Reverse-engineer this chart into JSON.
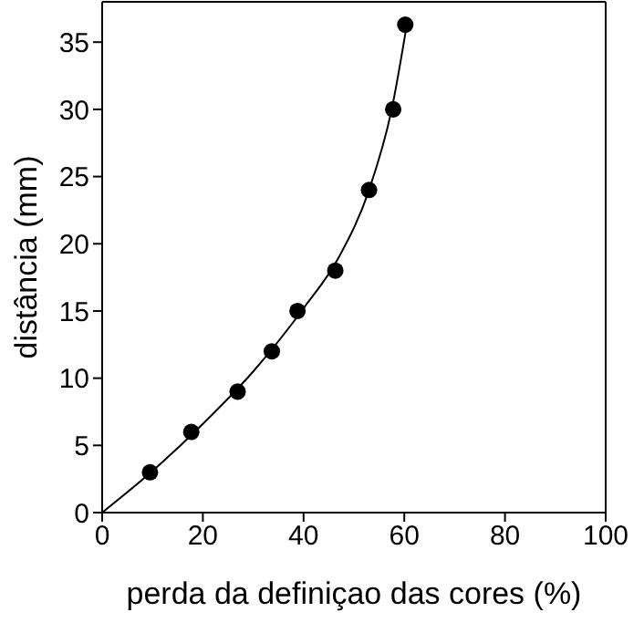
{
  "chart_data": {
    "type": "scatter",
    "xlabel": "perda da definiçao das cores (%)",
    "ylabel": "distância (mm)",
    "xlim": [
      0,
      100
    ],
    "xticks": [
      0,
      20,
      40,
      60,
      80,
      100
    ],
    "ylim": [
      0,
      38
    ],
    "yticks": [
      0,
      5,
      10,
      15,
      20,
      25,
      30,
      35
    ],
    "grid": false,
    "marker": "circle",
    "series": [
      {
        "color": "#000000",
        "x": [
          9.5,
          17.7,
          26.9,
          33.7,
          38.8,
          46.3,
          53,
          57.8,
          60.2
        ],
        "values": [
          3,
          6,
          9,
          12,
          15,
          18,
          24,
          30,
          36.3
        ]
      },
      {
        "type": "line",
        "color": "#000000",
        "marker": "none",
        "x": [
          0,
          10,
          20,
          30,
          40,
          47,
          53,
          57.5,
          60.5
        ],
        "values": [
          0,
          3.1,
          6.6,
          10.5,
          15.2,
          19,
          24,
          30,
          36.3
        ]
      }
    ]
  }
}
